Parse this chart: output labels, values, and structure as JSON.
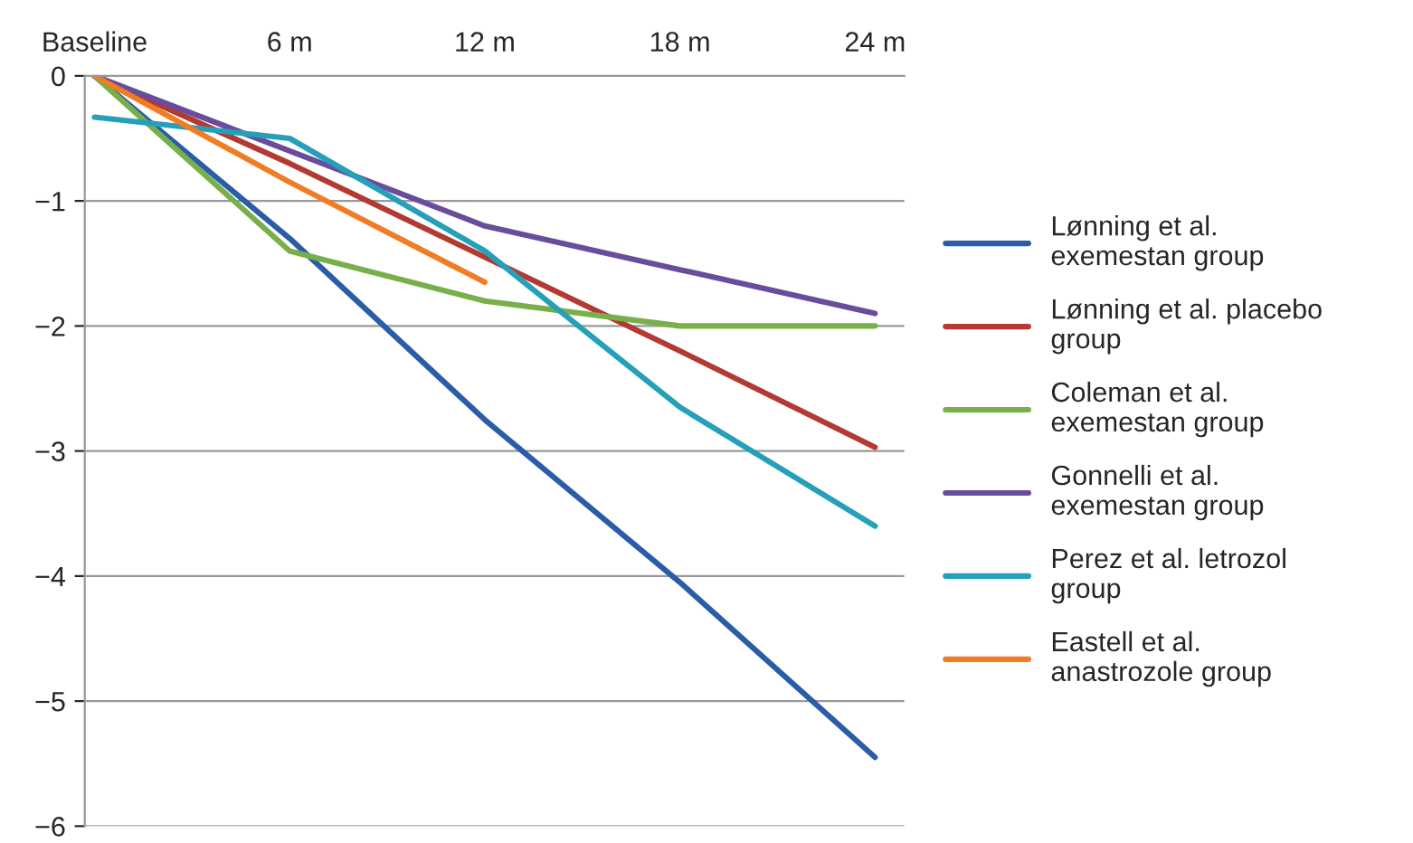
{
  "chart_data": {
    "type": "line",
    "categories": [
      "Baseline",
      "6 m",
      "12 m",
      "18 m",
      "24 m"
    ],
    "series": [
      {
        "name": "Lønning et al.\nexemestan group",
        "color": "#2b5ca8",
        "values": [
          0,
          -1.3,
          -2.75,
          -4.05,
          -5.45
        ]
      },
      {
        "name": "Lønning et al. placebo\ngroup",
        "color": "#b23a32",
        "values": [
          0,
          -0.7,
          -1.45,
          -2.2,
          -2.97
        ]
      },
      {
        "name": "Coleman et al.\nexemestan group",
        "color": "#77b04a",
        "values": [
          0,
          -1.4,
          -1.8,
          -2.0,
          -2.0
        ]
      },
      {
        "name": "Gonnelli et al.\nexemestan group",
        "color": "#6a4c9c",
        "values": [
          0,
          -0.6,
          -1.2,
          -1.55,
          -1.9
        ]
      },
      {
        "name": "Perez et al. letrozol\ngroup",
        "color": "#25a0b8",
        "values": [
          -0.33,
          -0.5,
          -1.4,
          -2.65,
          -3.6
        ]
      },
      {
        "name": "Eastell et al.\nanastrozole group",
        "color": "#f07c24",
        "values": [
          0,
          -0.85,
          -1.65,
          null,
          null
        ]
      }
    ],
    "ylim": [
      -6,
      0
    ],
    "yticks": [
      {
        "value": -6,
        "label": "−6"
      },
      {
        "value": -5,
        "label": "−5"
      },
      {
        "value": -4,
        "label": "−4"
      },
      {
        "value": -3,
        "label": "−3"
      },
      {
        "value": -2,
        "label": "−2"
      },
      {
        "value": -1,
        "label": "−1"
      },
      0
    ],
    "grid": "y",
    "legend": "right",
    "line_style": "solid",
    "marker": "none"
  }
}
